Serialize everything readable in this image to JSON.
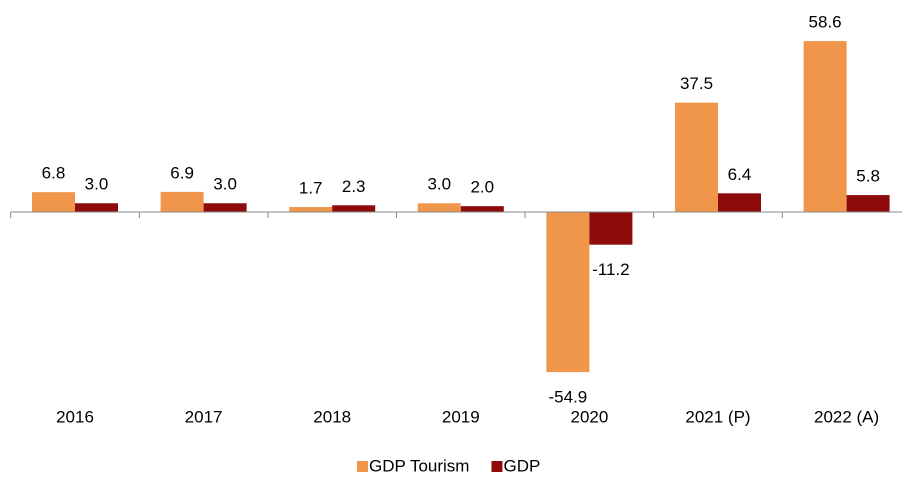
{
  "chart_data": {
    "type": "bar",
    "categories": [
      "2016",
      "2017",
      "2018",
      "2019",
      "2020",
      "2021 (P)",
      "2022 (A)"
    ],
    "series": [
      {
        "name": "GDP Tourism",
        "color": "#F0964A",
        "values": [
          6.8,
          6.9,
          1.7,
          3.0,
          -54.9,
          37.5,
          58.6
        ],
        "value_labels": [
          "6.8",
          "6.9",
          "1.7",
          "3.0",
          "-54.9",
          "37.5",
          "58.6"
        ]
      },
      {
        "name": "GDP",
        "color": "#8E0B0B",
        "values": [
          3.0,
          3.0,
          2.3,
          2.0,
          -11.2,
          6.4,
          5.8
        ],
        "value_labels": [
          "3.0",
          "3.0",
          "2.3",
          "2.0",
          "-11.2",
          "6.4",
          "5.8"
        ]
      }
    ],
    "ylim": [
      -60,
      60
    ],
    "legend": "bottom"
  }
}
